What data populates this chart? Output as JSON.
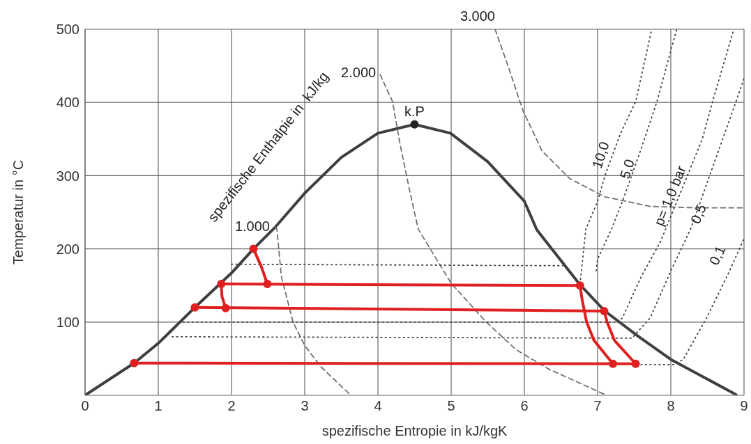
{
  "chart_data": {
    "type": "line",
    "xlabel": "spezifische Entropie  in kJ/kgK",
    "ylabel": "Temperatur in °C",
    "xlim": [
      0,
      9
    ],
    "ylim": [
      0,
      500
    ],
    "xticks": [
      0,
      1,
      2,
      3,
      4,
      5,
      6,
      7,
      8,
      9
    ],
    "yticks": [
      100,
      200,
      300,
      400,
      500
    ],
    "grid": true,
    "series": [
      {
        "color": "#3d4042",
        "line_style": "solid",
        "x": [
          0,
          0.67,
          1,
          1.5,
          2,
          2.3,
          2.6,
          3,
          3.5,
          4,
          4.5,
          4.99,
          5.5,
          6,
          6.17,
          6.76,
          7.1,
          7.55,
          8,
          8.89
        ],
        "values": [
          0,
          44,
          71,
          120,
          167,
          200,
          230,
          276,
          325,
          358,
          370,
          358,
          319,
          265,
          226,
          151,
          115,
          81,
          49,
          1
        ]
      },
      {
        "color": "#707070",
        "line_style": "dashed",
        "x": [
          2.6,
          2.62,
          2.68,
          2.84,
          3,
          3.22,
          3.63
        ],
        "values": [
          230,
          227,
          163,
          100,
          68,
          39,
          0
        ]
      },
      {
        "color": "#707070",
        "line_style": "dashed",
        "x": [
          4.03,
          4.2,
          4.3,
          4.43,
          4.55,
          5,
          5.48,
          5.89,
          6.33,
          7.1
        ],
        "values": [
          438,
          401,
          344,
          281,
          227,
          153,
          100,
          62,
          36,
          1
        ]
      },
      {
        "color": "#707070",
        "line_style": "dashed",
        "x": [
          5.6,
          5.79,
          5.98,
          6.24,
          6.62,
          7.1,
          7.72,
          8.36,
          9
        ],
        "values": [
          500,
          446,
          389,
          334,
          296,
          271,
          258,
          256,
          256
        ]
      },
      {
        "color": "#404040",
        "line_style": "dotted",
        "x": [
          2.0,
          6.52
        ],
        "values": [
          179,
          177
        ]
      },
      {
        "color": "#404040",
        "line_style": "dotted",
        "x": [
          6.76,
          6.84,
          7.0,
          7.1,
          7.31,
          7.52,
          7.74
        ],
        "values": [
          152,
          227,
          265,
          300,
          357,
          401,
          500
        ]
      },
      {
        "color": "#404040",
        "line_style": "dotted",
        "x": [
          6.98,
          7.0,
          7.19,
          7.34,
          7.6,
          7.81,
          8.08
        ],
        "values": [
          170,
          186,
          227,
          265,
          338,
          401,
          500
        ]
      },
      {
        "color": "#404040",
        "line_style": "dotted",
        "x": [
          1.34,
          7.29,
          7.34,
          7.6,
          7.86,
          8.43,
          8.57,
          8.86
        ],
        "values": [
          100,
          100,
          106,
          163,
          210,
          350,
          401,
          500
        ]
      },
      {
        "color": "#404040",
        "line_style": "dotted",
        "x": [
          1.19,
          7.47,
          7.72,
          8.01,
          8.27,
          8.89,
          9
        ],
        "values": [
          80,
          78,
          106,
          172,
          227,
          401,
          433
        ]
      },
      {
        "color": "#404040",
        "line_style": "dotted",
        "x": [
          7.53,
          8.05,
          8.17,
          8.49,
          8.77,
          9
        ],
        "values": [
          42,
          42,
          49,
          106,
          163,
          214
        ]
      },
      {
        "color": "#e02020",
        "line_style": "solid",
        "x": [
          2.3,
          2.41,
          2.49
        ],
        "values": [
          200,
          175,
          152
        ]
      },
      {
        "color": "#e02020",
        "line_style": "solid",
        "x": [
          1.86,
          6.76,
          6.79,
          6.85,
          6.95,
          7.21
        ],
        "values": [
          152,
          150,
          130,
          100,
          75,
          43
        ]
      },
      {
        "color": "#e02020",
        "line_style": "solid",
        "x": [
          1.86,
          1.87,
          1.92
        ],
        "values": [
          152,
          135,
          119
        ]
      },
      {
        "color": "#e02020",
        "line_style": "solid",
        "x": [
          1.5,
          7.09,
          7.13,
          7.23,
          7.52
        ],
        "values": [
          120,
          115,
          100,
          75,
          43
        ]
      },
      {
        "color": "#e02020",
        "line_style": "solid",
        "x": [
          0.67,
          7.52
        ],
        "values": [
          44,
          43
        ]
      },
      {
        "type": "scatter",
        "marker": "circle",
        "color": "#e02020",
        "x": [
          2.3,
          2.49,
          1.86,
          1.92,
          1.5,
          0.67,
          6.76,
          7.09,
          7.21,
          7.52
        ],
        "values": [
          200,
          152,
          152,
          119,
          120,
          44,
          150,
          115,
          43,
          43
        ]
      },
      {
        "type": "scatter",
        "marker": "circle",
        "color": "#222222",
        "x": [
          4.5
        ],
        "values": [
          370
        ]
      }
    ],
    "annotations": [
      "spezifische Enthalpie in  kJ/kg",
      {
        "text": "3.000",
        "x": 5.6,
        "y": 500
      },
      {
        "text": "2.000",
        "x": 4.03,
        "y": 438
      },
      {
        "text": "1.000",
        "x": 2.6,
        "y": 230
      },
      {
        "text": "k.P",
        "x": 4.5,
        "y": 370
      },
      "10,0",
      "5,0",
      {
        "text": "p= 1,0 bar",
        "x": 8.05,
        "y": 270
      },
      "0,5",
      "0,1"
    ]
  }
}
